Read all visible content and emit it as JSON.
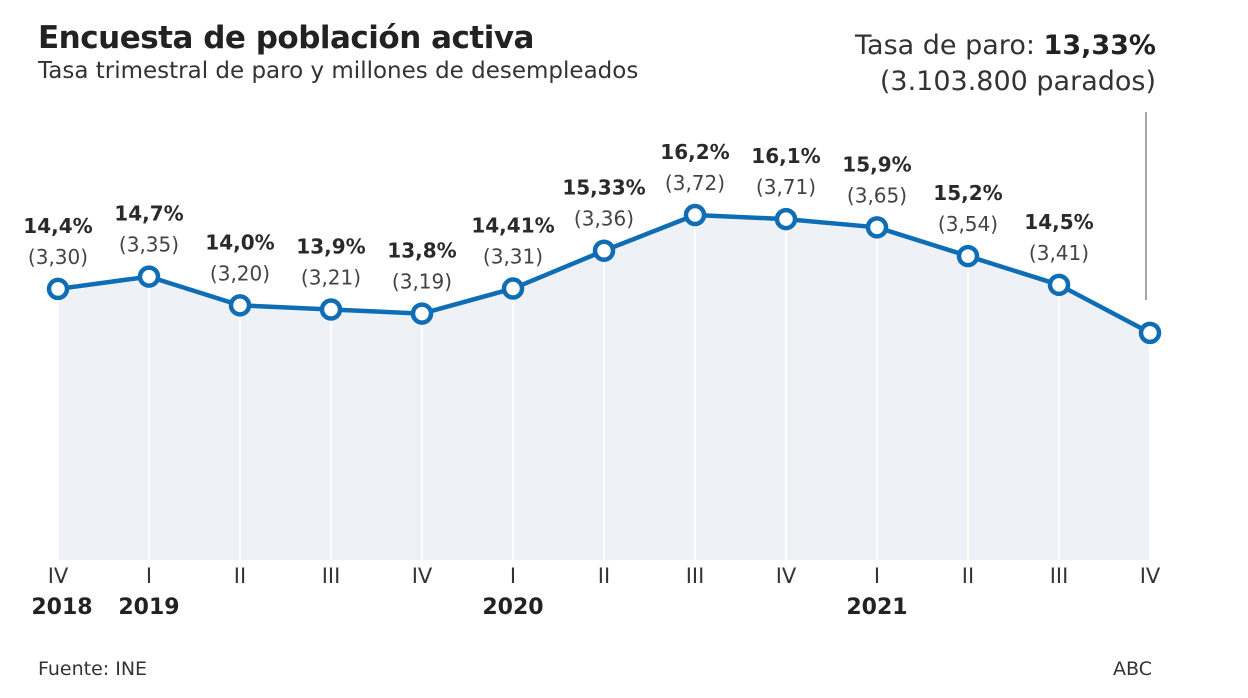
{
  "title": "Encuesta de población activa",
  "subtitle": "Tasa trimestral de paro y millones de desempleados",
  "annotation": {
    "label": "Tasa de paro: ",
    "value": "13,33%",
    "detail": "(3.103.800 parados)"
  },
  "source": "Fuente: INE",
  "brand": "ABC",
  "colors": {
    "line": "#0f6db5",
    "fill": "#eef1f6",
    "grid": "#ffffff"
  },
  "chart_data": {
    "type": "area",
    "title": "Encuesta de población activa",
    "subtitle": "Tasa trimestral de paro y millones de desempleados",
    "categories": [
      "IV",
      "I",
      "II",
      "III",
      "IV",
      "I",
      "II",
      "III",
      "IV",
      "I",
      "II",
      "III",
      "IV"
    ],
    "years": [
      {
        "label": "2018",
        "index": 0
      },
      {
        "label": "2019",
        "index": 1
      },
      {
        "label": "2020",
        "index": 5
      },
      {
        "label": "2021",
        "index": 9
      }
    ],
    "series": [
      {
        "values": [
          14.4,
          14.7,
          14.0,
          13.9,
          13.8,
          14.41,
          15.33,
          16.2,
          16.1,
          15.9,
          15.2,
          14.5,
          13.33
        ],
        "pct_labels": [
          "14,4%",
          "14,7%",
          "14,0%",
          "13,9%",
          "13,8%",
          "14,41%",
          "15,33%",
          "16,2%",
          "16,1%",
          "15,9%",
          "15,2%",
          "14,5%",
          ""
        ],
        "millions_labels": [
          "(3,30)",
          "(3,35)",
          "(3,20)",
          "(3,21)",
          "(3,19)",
          "(3,31)",
          "(3,36)",
          "(3,72)",
          "(3,71)",
          "(3,65)",
          "(3,54)",
          "(3,41)",
          ""
        ]
      }
    ],
    "ylim": [
      7.8,
      19
    ],
    "grid": false,
    "legend": "none"
  }
}
